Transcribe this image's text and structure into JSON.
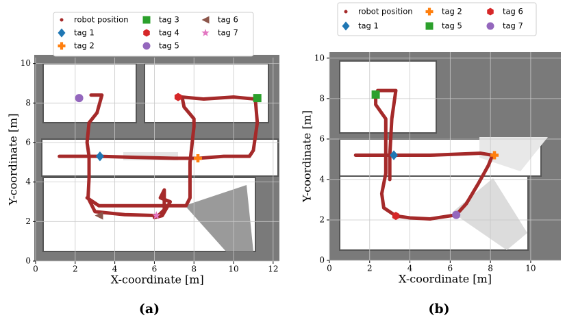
{
  "chart_data": [
    {
      "type": "scatter",
      "caption": "(a)",
      "xlabel": "X-coordinate [m]",
      "ylabel": "Y-coordinate [m]",
      "xlim": [
        0,
        12.3
      ],
      "ylim": [
        0,
        10.3
      ],
      "xticks": [
        0,
        2,
        4,
        6,
        8,
        10,
        12
      ],
      "yticks": [
        0,
        2,
        4,
        6,
        8,
        10
      ],
      "grid": true,
      "series": [
        {
          "name": "robot position",
          "color": "#a52a2a",
          "marker": "o",
          "x": [
            1.2,
            2.6,
            3.25,
            5,
            7,
            8.2,
            9.5,
            10.8,
            11,
            11.2,
            11.1,
            null,
            2.8,
            3.35,
            3.1,
            2.7,
            2.6,
            2.7,
            2.7,
            2.65,
            3.0,
            4.5,
            6.2,
            6.5,
            6.5,
            6.3,
            6.8,
            6.4,
            6.0,
            null,
            2.6,
            3.2,
            5.0,
            7.6,
            7.8,
            7.8,
            8.0,
            8.0,
            7.5,
            7.4,
            8.5,
            10,
            11.1
          ],
          "y": [
            5.3,
            5.3,
            5.3,
            5.25,
            5.2,
            5.2,
            5.3,
            5.3,
            5.6,
            7,
            8.2,
            null,
            8.4,
            8.4,
            7.5,
            7.0,
            6.0,
            5.3,
            4.2,
            3.2,
            2.5,
            2.35,
            2.3,
            2.6,
            3.6,
            3.2,
            3.0,
            2.3,
            2.2,
            null,
            3.2,
            2.8,
            2.8,
            2.8,
            3.2,
            5.0,
            6.8,
            7.2,
            7.8,
            8.3,
            8.2,
            8.3,
            8.2
          ]
        },
        {
          "name": "tag 1",
          "color": "#1f77b4",
          "marker": "D",
          "x": [
            3.25
          ],
          "y": [
            5.3
          ]
        },
        {
          "name": "tag 2",
          "color": "#ff7f0e",
          "marker": "P",
          "x": [
            8.2
          ],
          "y": [
            5.2
          ]
        },
        {
          "name": "tag 3",
          "color": "#2ca02c",
          "marker": "s",
          "x": [
            11.2
          ],
          "y": [
            8.25
          ]
        },
        {
          "name": "tag 4",
          "color": "#d62728",
          "marker": "h",
          "x": [
            7.2
          ],
          "y": [
            8.3
          ]
        },
        {
          "name": "tag 5",
          "color": "#9467bd",
          "marker": "o",
          "x": [
            2.2
          ],
          "y": [
            8.25
          ]
        },
        {
          "name": "tag 6",
          "color": "#8c564b",
          "marker": "<",
          "x": [
            3.2
          ],
          "y": [
            2.3
          ]
        },
        {
          "name": "tag 7",
          "color": "#e377c2",
          "marker": "*",
          "x": [
            6.1
          ],
          "y": [
            2.3
          ]
        }
      ]
    },
    {
      "type": "scatter",
      "caption": "(b)",
      "xlabel": "X-coordinate [m]",
      "ylabel": "Y-coordinate [m]",
      "xlim": [
        0,
        11.5
      ],
      "ylim": [
        0,
        10.3
      ],
      "xticks": [
        0,
        2,
        4,
        6,
        8,
        10
      ],
      "yticks": [
        0,
        2,
        4,
        6,
        8,
        10
      ],
      "grid": true,
      "series": [
        {
          "name": "robot position",
          "color": "#a52a2a",
          "marker": "o",
          "x": [
            1.3,
            2.8,
            3.2,
            5,
            7.5,
            8.1,
            7.9,
            7.4,
            6.8,
            6.3,
            5,
            4,
            3.3,
            2.7,
            2.6,
            2.8,
            2.8,
            2.8,
            2.3,
            2.3,
            null,
            2.4,
            3.3,
            3.1,
            3.0,
            3.0
          ],
          "y": [
            5.2,
            5.2,
            5.2,
            5.2,
            5.3,
            5.2,
            4.7,
            3.8,
            2.8,
            2.25,
            2.05,
            2.1,
            2.2,
            2.6,
            3.3,
            4.3,
            5.5,
            7.0,
            7.7,
            8.2,
            null,
            8.4,
            8.4,
            7,
            5.2,
            4
          ]
        },
        {
          "name": "tag 1",
          "color": "#1f77b4",
          "marker": "D",
          "x": [
            3.2
          ],
          "y": [
            5.2
          ]
        },
        {
          "name": "tag 2",
          "color": "#ff7f0e",
          "marker": "P",
          "x": [
            8.2
          ],
          "y": [
            5.2
          ]
        },
        {
          "name": "tag 5",
          "color": "#2ca02c",
          "marker": "s",
          "x": [
            2.3
          ],
          "y": [
            8.2
          ]
        },
        {
          "name": "tag 6",
          "color": "#d62728",
          "marker": "h",
          "x": [
            3.3
          ],
          "y": [
            2.2
          ]
        },
        {
          "name": "tag 7",
          "color": "#9467bd",
          "marker": "o",
          "x": [
            6.3
          ],
          "y": [
            2.25
          ]
        }
      ]
    }
  ]
}
